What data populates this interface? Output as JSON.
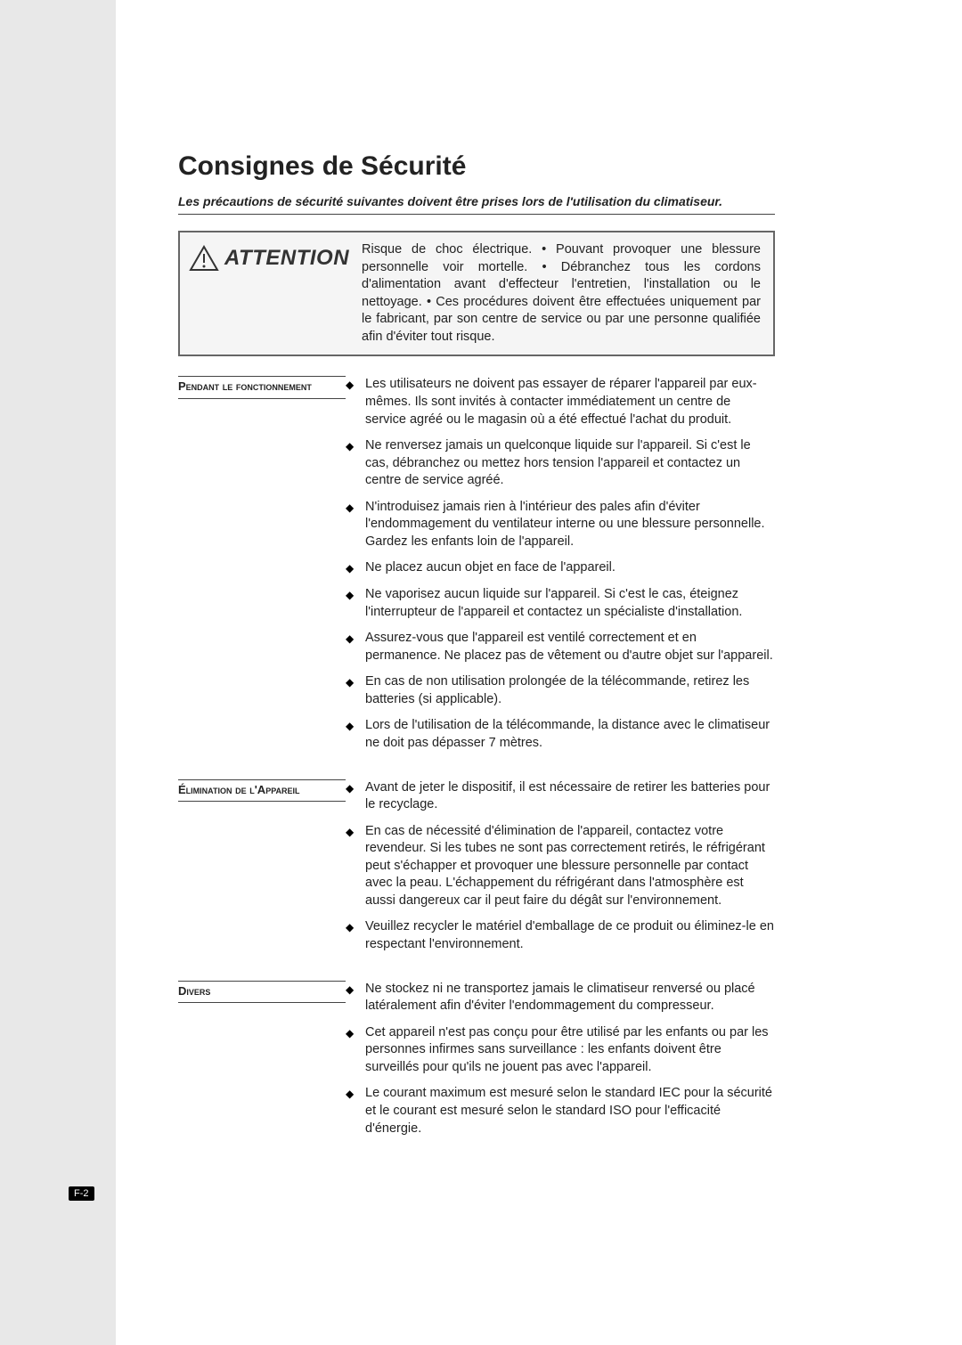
{
  "title": "Consignes de Sécurité",
  "subtitle": "Les précautions de sécurité suivantes doivent être prises lors de l'utilisation du climatiseur.",
  "attention": {
    "label": "ATTENTION",
    "text": "Risque de choc électrique. • Pouvant provoquer une blessure personnelle voir mortelle. • Débranchez tous les cordons d'alimentation avant d'effecteur l'entretien, l'installation ou le nettoyage. • Ces procédures doivent être effectuées uniquement par le fabricant, par son centre de service ou par une personne qualifiée afin d'éviter tout risque."
  },
  "sections": [
    {
      "label": "Pendant le fonctionnement",
      "items": [
        "Les utilisateurs ne doivent pas essayer de réparer l'appareil par eux-mêmes. Ils sont invités à contacter immédiatement un centre de service agréé ou le magasin où a été effectué l'achat du produit.",
        "Ne renversez jamais un quelconque liquide sur l'appareil. Si c'est le cas, débranchez ou mettez hors tension l'appareil et contactez un centre de service agréé.",
        "N'introduisez jamais rien à l'intérieur des pales afin d'éviter l'endommagement du ventilateur interne ou une blessure personnelle. Gardez les enfants loin de l'appareil.",
        "Ne placez aucun objet en face de l'appareil.",
        "Ne vaporisez aucun liquide sur l'appareil. Si c'est le cas, éteignez l'interrupteur de l'appareil et contactez un spécialiste d'installation.",
        "Assurez-vous que l'appareil est ventilé correctement et en permanence. Ne placez pas de vêtement ou d'autre objet sur l'appareil.",
        "En cas de non utilisation prolongée de la télécommande, retirez les batteries (si applicable).",
        "Lors de l'utilisation de la télécommande, la distance avec le climatiseur ne doit pas dépasser 7 mètres."
      ]
    },
    {
      "label": "Élimination de l'Appareil",
      "items": [
        "Avant de jeter le dispositif, il est nécessaire de retirer les batteries pour le recyclage.",
        "En cas de nécessité d'élimination de l'appareil, contactez votre revendeur. Si les tubes ne sont pas correctement retirés, le réfrigérant peut s'échapper et provoquer une blessure personnelle par contact avec la peau. L'échappement du réfrigérant dans l'atmosphère est aussi dangereux car il peut faire du dégât sur l'environnement.",
        "Veuillez recycler le matériel d'emballage de ce produit ou éliminez-le en respectant l'environnement."
      ]
    },
    {
      "label": "Divers",
      "items": [
        "Ne stockez ni ne transportez jamais le climatiseur renversé ou placé latéralement afin d'éviter l'endommagement du compresseur.",
        "Cet appareil n'est pas conçu pour être utilisé par les enfants ou par les personnes infirmes sans surveillance : les enfants doivent être surveillés pour qu'ils ne jouent pas avec l'appareil.",
        "Le courant maximum est mesuré selon le standard IEC pour la sécurité et le courant est mesuré selon le standard ISO pour l'efficacité d'énergie."
      ]
    }
  ],
  "page_number": "F-2",
  "colors": {
    "left_bar": "#e8e8e8",
    "attention_bg": "#f5f5f5",
    "text": "#222222",
    "border": "#666666"
  }
}
